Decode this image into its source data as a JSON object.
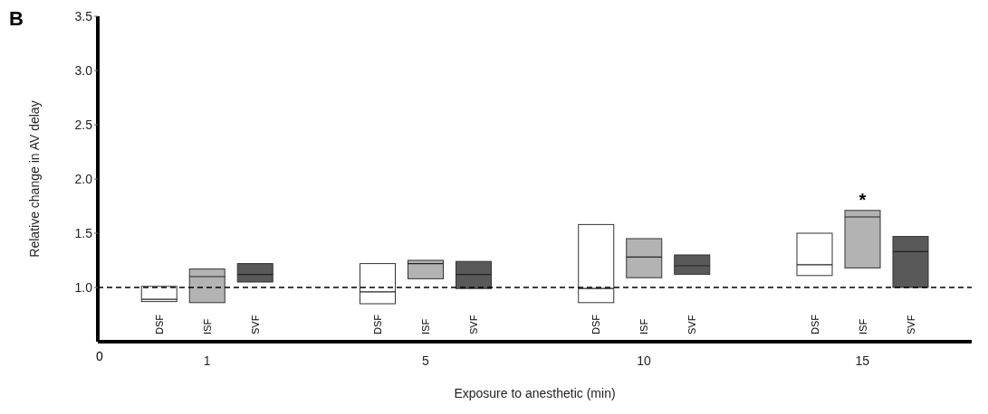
{
  "chart_data": {
    "type": "box",
    "title": "B",
    "xlabel": "Exposure to anesthetic (min)",
    "ylabel": "Relative change in AV delay",
    "categories": [
      "1",
      "5",
      "10",
      "15"
    ],
    "ylim": [
      0.5,
      3.5
    ],
    "yticks": [
      {
        "value": 1,
        "label": "1.0"
      },
      {
        "value": 1.5,
        "label": "1.5"
      },
      {
        "value": 2,
        "label": "2.0"
      },
      {
        "value": 2.5,
        "label": "2.5"
      },
      {
        "value": 3,
        "label": "3.0"
      },
      {
        "value": 3.5,
        "label": "3.5"
      }
    ],
    "series": [
      {
        "name": "DSF",
        "color": "#ffffff",
        "boxes": [
          {
            "low": 0.87,
            "q1": 0.87,
            "median": 0.89,
            "q3": 1.01,
            "high": 1.01
          },
          {
            "low": 0.85,
            "q1": 0.85,
            "median": 0.96,
            "q3": 1.22,
            "high": 1.22
          },
          {
            "low": 0.86,
            "q1": 0.86,
            "median": 0.99,
            "q3": 1.58,
            "high": 1.58
          },
          {
            "low": 1.11,
            "q1": 1.11,
            "median": 1.21,
            "q3": 1.5,
            "high": 1.5
          }
        ]
      },
      {
        "name": "ISF",
        "color": "#b3b3b3",
        "boxes": [
          {
            "low": 0.86,
            "q1": 0.86,
            "median": 1.1,
            "q3": 1.17,
            "high": 1.17
          },
          {
            "low": 1.08,
            "q1": 1.08,
            "median": 1.22,
            "q3": 1.25,
            "high": 1.25
          },
          {
            "low": 1.09,
            "q1": 1.09,
            "median": 1.28,
            "q3": 1.45,
            "high": 1.45
          },
          {
            "low": 1.18,
            "q1": 1.18,
            "median": 1.65,
            "q3": 1.71,
            "high": 1.71
          }
        ]
      },
      {
        "name": "SVF",
        "color": "#595959",
        "boxes": [
          {
            "low": 1.05,
            "q1": 1.05,
            "median": 1.12,
            "q3": 1.22,
            "high": 1.22
          },
          {
            "low": 0.99,
            "q1": 0.99,
            "median": 1.12,
            "q3": 1.24,
            "high": 1.24
          },
          {
            "low": 1.12,
            "q1": 1.12,
            "median": 1.2,
            "q3": 1.3,
            "high": 1.3
          },
          {
            "low": 1.0,
            "q1": 1.0,
            "median": 1.33,
            "q3": 1.47,
            "high": 1.47
          }
        ]
      }
    ],
    "ref_lines": [
      {
        "axis": "y",
        "value": 1,
        "label": null,
        "color": "#000000",
        "line_style": "dashed"
      }
    ],
    "annotations": [
      {
        "text": "*",
        "x": "15",
        "y": 1.71
      },
      "0"
    ]
  }
}
